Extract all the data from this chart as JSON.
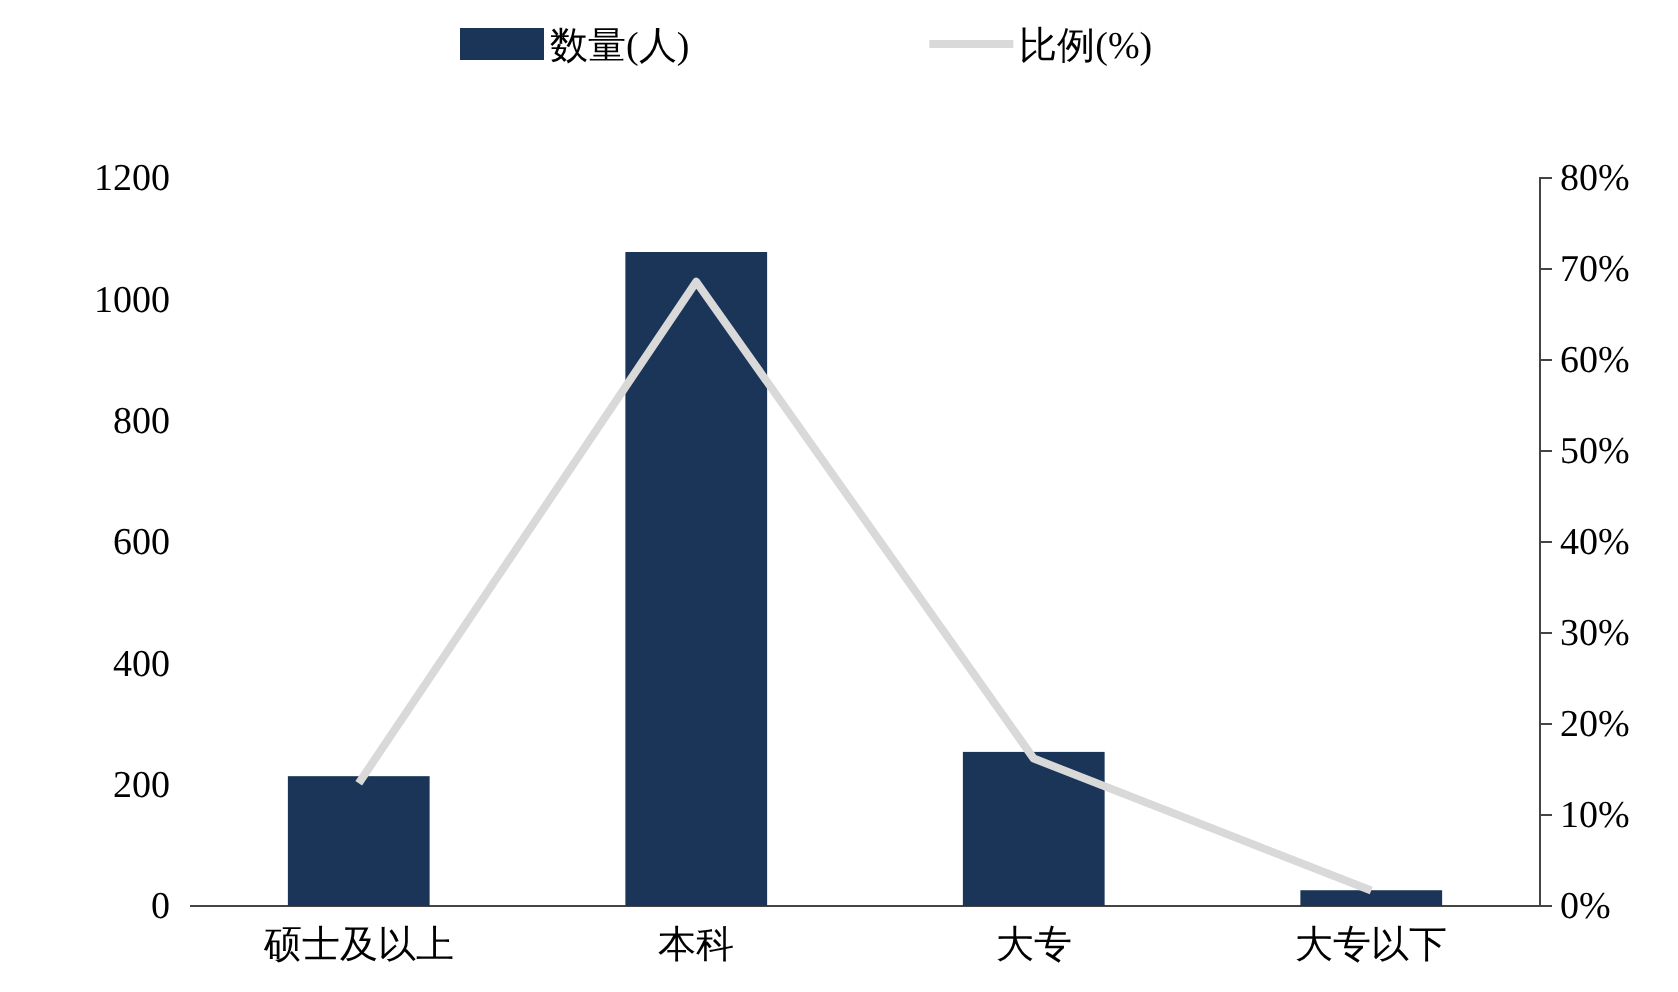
{
  "chart_data": {
    "type": "bar",
    "categories": [
      "硕士及以上",
      "本科",
      "大专",
      "大专以下"
    ],
    "series": [
      {
        "name": "数量(人)",
        "color": "#1b3558",
        "values": [
          214,
          1078,
          254,
          26
        ]
      },
      {
        "name": "比例(%)",
        "type": "line",
        "axis": "y2",
        "color": "#d9d9d9",
        "values": [
          13.5,
          68.6,
          16.2,
          1.7
        ]
      }
    ],
    "ylim": [
      0,
      1200
    ],
    "yticks": [
      0,
      200,
      400,
      600,
      800,
      1000,
      1200
    ],
    "y2lim": [
      0,
      80
    ],
    "y2ticks": [
      {
        "value": 0,
        "label": "0%"
      },
      {
        "value": 10,
        "label": "10%"
      },
      {
        "value": 20,
        "label": "20%"
      },
      {
        "value": 30,
        "label": "30%"
      },
      {
        "value": 40,
        "label": "40%"
      },
      {
        "value": 50,
        "label": "50%"
      },
      {
        "value": 60,
        "label": "60%"
      },
      {
        "value": 70,
        "label": "70%"
      },
      {
        "value": 80,
        "label": "80%"
      }
    ],
    "legend": "top",
    "grid": false,
    "marker": "none",
    "line_style": "solid"
  }
}
